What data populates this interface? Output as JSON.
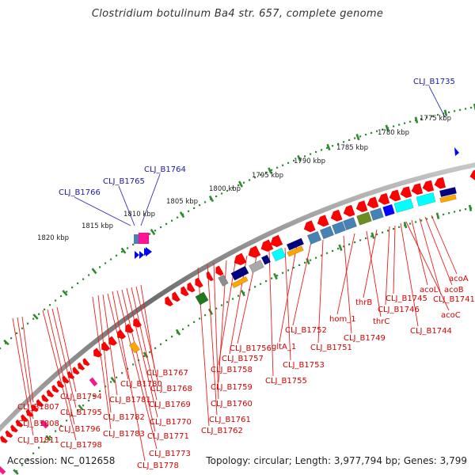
{
  "title": "Clostridium botulinum Ba4 str. 657, complete genome",
  "footer": {
    "accession": "Accession: NC_012658",
    "summary": "Topology: circular; Length: 3,977,794 bp; Genes: 3,799"
  },
  "colors": {
    "background": "#ffffff",
    "backbone": "#808080",
    "tick_green": "#2e8b2e",
    "gene_red": "#ff0000",
    "label_red": "#d40000",
    "label_blue": "#1a1aaa",
    "forward_blue": "#0000ff",
    "magenta": "#ff1493",
    "navy": "#000080",
    "orange": "#ffa500",
    "cyan": "#00ffff",
    "steelblue": "#4682b4",
    "olive": "#6b8e23",
    "darkgreen": "#1f7a1f",
    "gray": "#8c8c8c"
  },
  "scale_labels": [
    "1775 kbp",
    "1780 kbp",
    "1785 kbp",
    "1790 kbp",
    "1795 kbp",
    "1800 kbp",
    "1805 kbp",
    "1810 kbp",
    "1815 kbp",
    "1820 kbp"
  ],
  "top_genes": [
    "CLJ_B1735",
    "CLJ_B1764",
    "CLJ_B1765",
    "CLJ_B1766"
  ],
  "bottom_genes": [
    "acoA",
    "acoB",
    "CLJ_B1741",
    "acoL",
    "acoC",
    "CLJ_B1744",
    "CLJ_B1745",
    "CLJ_B1746",
    "thrB",
    "thrC",
    "hom_1",
    "CLJ_B1749",
    "CLJ_B1751",
    "CLJ_B1752",
    "gltA_1",
    "CLJ_B1753",
    "CLJ_B1755",
    "CLJ_B1756",
    "CLJ_B1757",
    "CLJ_B1758",
    "CLJ_B1759",
    "CLJ_B1760",
    "CLJ_B1761",
    "CLJ_B1762",
    "CLJ_B1767",
    "CLJ_B1768",
    "CLJ_B1769",
    "CLJ_B1770",
    "CLJ_B1771",
    "CLJ_B1773",
    "CLJ_B1778",
    "CLJ_B1780",
    "CLJ_B1781",
    "CLJ_B1782",
    "CLJ_B1783",
    "CLJ_B1794",
    "CLJ_B1795",
    "CLJ_B1796",
    "CLJ_B1798",
    "CLJ_B1807",
    "CLJ_B1808",
    "CLJ_B1811"
  ]
}
